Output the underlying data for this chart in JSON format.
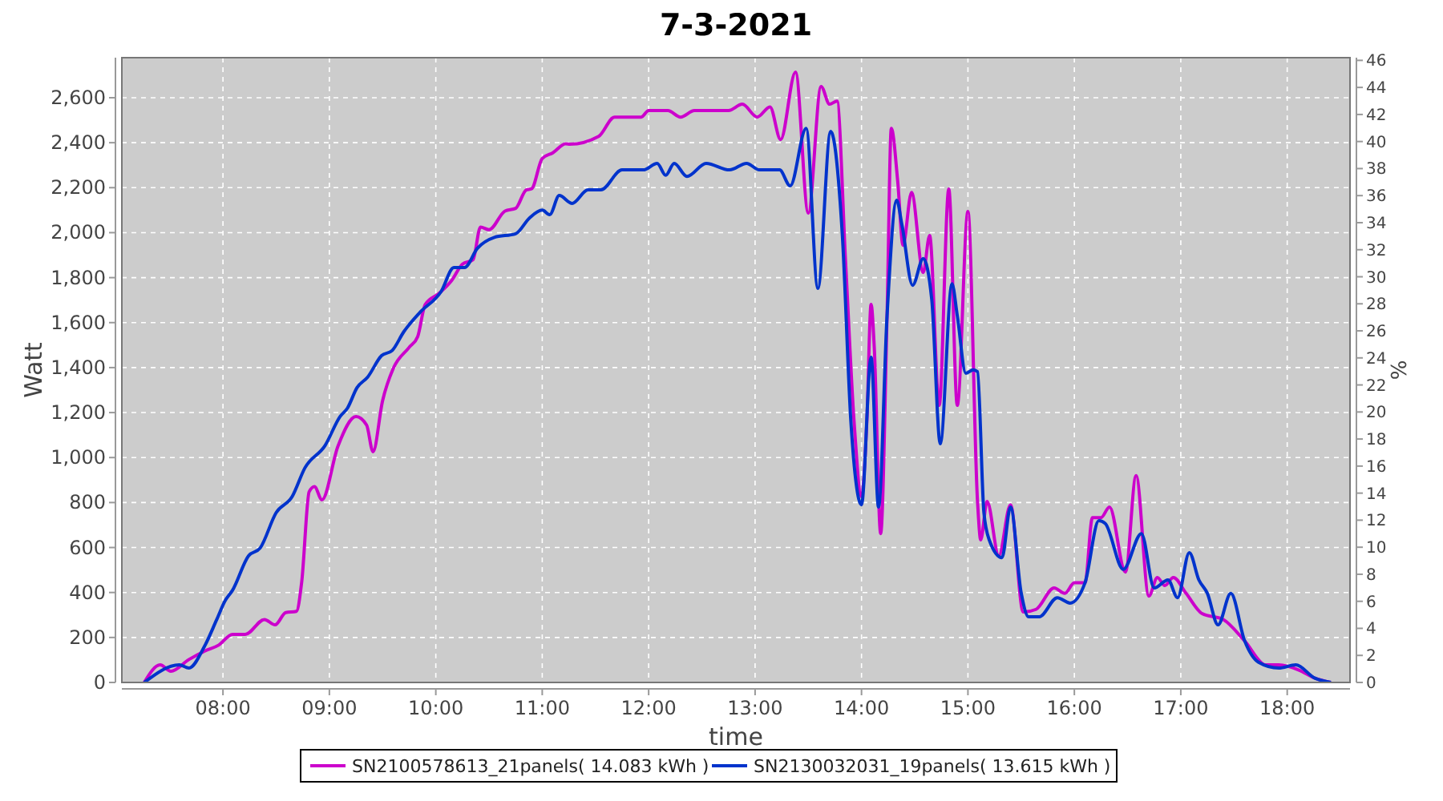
{
  "chart_data": {
    "type": "line",
    "title": "7-3-2021",
    "xlabel": "time",
    "ylabel": "Watt",
    "y2label": "%",
    "xlim": [
      7.05,
      18.59
    ],
    "xticks": [
      {
        "value": 8,
        "label": "08:00"
      },
      {
        "value": 9,
        "label": "09:00"
      },
      {
        "value": 10,
        "label": "10:00"
      },
      {
        "value": 11,
        "label": "11:00"
      },
      {
        "value": 12,
        "label": "12:00"
      },
      {
        "value": 13,
        "label": "13:00"
      },
      {
        "value": 14,
        "label": "14:00"
      },
      {
        "value": 15,
        "label": "15:00"
      },
      {
        "value": 16,
        "label": "16:00"
      },
      {
        "value": 17,
        "label": "17:00"
      },
      {
        "value": 18,
        "label": "18:00"
      }
    ],
    "ylim": [
      0,
      2778
    ],
    "yticks": [
      0,
      200,
      400,
      600,
      800,
      {
        "value": 1000,
        "label": "1,000"
      },
      {
        "value": 1200,
        "label": "1,200"
      },
      {
        "value": 1400,
        "label": "1,400"
      },
      {
        "value": 1600,
        "label": "1,600"
      },
      {
        "value": 1800,
        "label": "1,800"
      },
      {
        "value": 2000,
        "label": "2,000"
      },
      {
        "value": 2200,
        "label": "2,200"
      },
      {
        "value": 2400,
        "label": "2,400"
      },
      {
        "value": 2600,
        "label": "2,600"
      }
    ],
    "y2lim": [
      0,
      46.2
    ],
    "y2ticks": [
      0,
      2,
      4,
      6,
      8,
      10,
      12,
      14,
      16,
      18,
      20,
      22,
      24,
      26,
      28,
      30,
      32,
      34,
      36,
      38,
      40,
      42,
      44,
      46
    ],
    "grid": true,
    "legend": "bottom",
    "marker": "none",
    "line_style": "solid",
    "series": [
      {
        "name": "SN2100578613_21panels( 14.083 kWh )",
        "color": "#cc00cc",
        "x": [
          7.26,
          7.41,
          7.51,
          7.68,
          7.83,
          7.96,
          8.09,
          8.21,
          8.39,
          8.49,
          8.59,
          8.69,
          8.74,
          8.81,
          8.86,
          8.93,
          9.08,
          9.25,
          9.35,
          9.41,
          9.5,
          9.6,
          9.75,
          9.83,
          9.9,
          10.03,
          10.15,
          10.25,
          10.35,
          10.42,
          10.5,
          10.65,
          10.75,
          10.85,
          10.9,
          11.0,
          11.1,
          11.22,
          11.26,
          11.53,
          11.68,
          11.93,
          12.0,
          12.18,
          12.3,
          12.43,
          12.75,
          12.88,
          13.02,
          13.14,
          13.24,
          13.38,
          13.5,
          13.62,
          13.7,
          13.77,
          13.85,
          13.93,
          14.0,
          14.05,
          14.09,
          14.12,
          14.18,
          14.24,
          14.28,
          14.34,
          14.39,
          14.47,
          14.58,
          14.64,
          14.73,
          14.82,
          14.9,
          15.0,
          15.09,
          15.12,
          15.18,
          15.29,
          15.4,
          15.52,
          15.64,
          15.81,
          15.91,
          16.0,
          16.1,
          16.17,
          16.25,
          16.33,
          16.48,
          16.58,
          16.7,
          16.78,
          16.85,
          16.93,
          17.05,
          17.2,
          17.4,
          17.6,
          17.8,
          17.92,
          18.11,
          18.26,
          18.41
        ],
        "values": [
          0,
          78,
          50,
          102,
          140,
          166,
          214,
          214,
          280,
          256,
          311,
          316,
          447,
          848,
          871,
          812,
          1050,
          1182,
          1144,
          1026,
          1253,
          1396,
          1490,
          1538,
          1680,
          1730,
          1788,
          1860,
          1880,
          2025,
          2013,
          2096,
          2108,
          2190,
          2195,
          2330,
          2355,
          2395,
          2393,
          2428,
          2514,
          2514,
          2543,
          2543,
          2514,
          2543,
          2543,
          2571,
          2514,
          2559,
          2414,
          2714,
          2087,
          2650,
          2571,
          2585,
          1873,
          1161,
          826,
          1161,
          1681,
          1488,
          662,
          1631,
          2464,
          2229,
          1944,
          2179,
          1823,
          1987,
          1232,
          2194,
          1232,
          2094,
          805,
          634,
          805,
          563,
          790,
          313,
          325,
          420,
          396,
          443,
          443,
          733,
          733,
          780,
          491,
          920,
          384,
          467,
          431,
          467,
          396,
          306,
          280,
          185,
          78,
          78,
          55,
          19,
          0
        ]
      },
      {
        "name": "SN2130032031_19panels( 13.615 kWh )",
        "color": "#0033cc",
        "x": [
          7.26,
          7.59,
          7.68,
          7.83,
          7.94,
          8.02,
          8.09,
          8.24,
          8.35,
          8.5,
          8.65,
          8.77,
          8.96,
          9.1,
          9.17,
          9.26,
          9.36,
          9.49,
          9.59,
          9.7,
          9.85,
          10.05,
          10.17,
          10.27,
          10.39,
          10.55,
          10.75,
          10.88,
          11.0,
          11.07,
          11.16,
          11.28,
          11.43,
          11.55,
          11.75,
          11.95,
          12.08,
          12.16,
          12.24,
          12.36,
          12.54,
          12.76,
          12.92,
          13.04,
          13.23,
          13.33,
          13.48,
          13.59,
          13.71,
          13.82,
          13.9,
          14.0,
          14.09,
          14.16,
          14.24,
          14.33,
          14.38,
          14.48,
          14.58,
          14.66,
          14.74,
          14.85,
          14.9,
          14.98,
          15.05,
          15.09,
          15.15,
          15.2,
          15.32,
          15.4,
          15.5,
          15.57,
          15.67,
          15.84,
          15.96,
          16.1,
          16.23,
          16.29,
          16.46,
          16.63,
          16.75,
          16.88,
          16.97,
          17.08,
          17.17,
          17.25,
          17.35,
          17.47,
          17.6,
          17.73,
          17.92,
          18.08,
          18.26,
          18.41
        ],
        "values": [
          0,
          78,
          64,
          164,
          278,
          363,
          410,
          563,
          598,
          755,
          826,
          954,
          1054,
          1182,
          1220,
          1311,
          1358,
          1453,
          1476,
          1560,
          1645,
          1738,
          1845,
          1845,
          1930,
          1979,
          1995,
          2065,
          2100,
          2080,
          2165,
          2130,
          2190,
          2190,
          2279,
          2279,
          2308,
          2255,
          2308,
          2250,
          2308,
          2279,
          2308,
          2279,
          2279,
          2208,
          2464,
          1752,
          2450,
          1987,
          1161,
          790,
          1446,
          780,
          1631,
          2144,
          2035,
          1766,
          1885,
          1702,
          1061,
          1773,
          1631,
          1375,
          1390,
          1382,
          755,
          634,
          555,
          780,
          399,
          292,
          292,
          377,
          353,
          443,
          719,
          707,
          503,
          662,
          420,
          456,
          377,
          577,
          456,
          396,
          256,
          396,
          185,
          90,
          64,
          78,
          19,
          0
        ]
      }
    ]
  }
}
